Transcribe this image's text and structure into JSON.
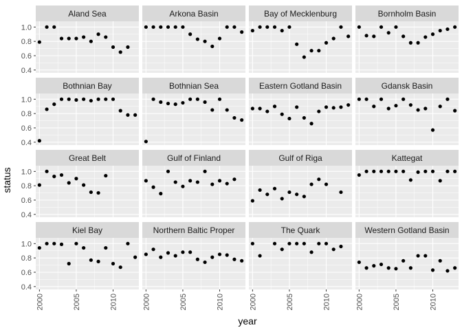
{
  "chart_data": {
    "type": "scatter",
    "facet_layout": "4x4 grid",
    "xlabel": "year",
    "ylabel": "status",
    "xlim": [
      1999.5,
      2013.5
    ],
    "ylim": [
      0.36,
      1.08
    ],
    "x_ticks": [
      2000,
      2005,
      2010
    ],
    "y_ticks": [
      0.4,
      0.6,
      0.8,
      1.0
    ],
    "y_tick_labels": [
      "0.4",
      "0.6",
      "0.8",
      "1.0"
    ],
    "grid": true,
    "colors": {
      "panel": "#ebebeb",
      "strip": "#d9d9d9",
      "grid_major": "#ffffff",
      "point": "#000000"
    },
    "facets": [
      {
        "name": "Aland Sea",
        "x": [
          2000,
          2001,
          2002,
          2003,
          2004,
          2005,
          2006,
          2007,
          2008,
          2009,
          2010,
          2011,
          2012
        ],
        "y": [
          0.79,
          1.0,
          1.0,
          0.84,
          0.84,
          0.84,
          0.86,
          0.8,
          0.9,
          0.86,
          0.72,
          0.65,
          0.72
        ]
      },
      {
        "name": "Arkona Basin",
        "x": [
          2000,
          2001,
          2002,
          2003,
          2004,
          2005,
          2006,
          2007,
          2008,
          2009,
          2010,
          2011,
          2012,
          2013
        ],
        "y": [
          1.0,
          1.0,
          1.0,
          1.0,
          1.0,
          1.0,
          0.9,
          0.83,
          0.8,
          0.73,
          0.84,
          1.0,
          1.0,
          0.93
        ]
      },
      {
        "name": "Bay of Mecklenburg",
        "x": [
          2000,
          2001,
          2002,
          2003,
          2004,
          2005,
          2006,
          2007,
          2008,
          2009,
          2010,
          2011,
          2012,
          2013
        ],
        "y": [
          0.95,
          1.0,
          1.0,
          1.0,
          0.95,
          1.0,
          0.76,
          0.58,
          0.67,
          0.67,
          0.78,
          0.84,
          1.0,
          0.87
        ]
      },
      {
        "name": "Bornholm Basin",
        "x": [
          2000,
          2001,
          2002,
          2003,
          2004,
          2005,
          2006,
          2007,
          2008,
          2009,
          2010,
          2011,
          2012,
          2013
        ],
        "y": [
          1.0,
          0.88,
          0.87,
          1.0,
          0.92,
          1.0,
          0.87,
          0.78,
          0.78,
          0.86,
          0.9,
          0.95,
          0.97,
          1.0
        ]
      },
      {
        "name": "Bothnian Bay",
        "x": [
          2000,
          2001,
          2002,
          2003,
          2004,
          2005,
          2006,
          2007,
          2008,
          2009,
          2010,
          2011,
          2012,
          2013
        ],
        "y": [
          0.42,
          0.86,
          0.93,
          1.0,
          1.0,
          0.99,
          1.0,
          0.98,
          1.0,
          1.0,
          1.0,
          0.84,
          0.78,
          0.78
        ]
      },
      {
        "name": "Bothnian Sea",
        "x": [
          2000,
          2001,
          2002,
          2003,
          2004,
          2005,
          2006,
          2007,
          2008,
          2009,
          2010,
          2011,
          2012,
          2013
        ],
        "y": [
          0.41,
          1.0,
          0.96,
          0.94,
          0.93,
          0.95,
          1.0,
          1.0,
          0.96,
          0.85,
          1.0,
          0.85,
          0.74,
          0.71
        ]
      },
      {
        "name": "Eastern Gotland Basin",
        "x": [
          2000,
          2001,
          2002,
          2003,
          2004,
          2005,
          2006,
          2007,
          2008,
          2009,
          2010,
          2011,
          2012,
          2013
        ],
        "y": [
          0.87,
          0.87,
          0.83,
          0.9,
          0.79,
          0.73,
          0.89,
          0.74,
          0.66,
          0.83,
          0.89,
          0.88,
          0.89,
          0.92
        ]
      },
      {
        "name": "Gdansk Basin",
        "x": [
          2000,
          2001,
          2002,
          2003,
          2004,
          2005,
          2006,
          2007,
          2008,
          2009,
          2010,
          2011,
          2012,
          2013
        ],
        "y": [
          1.0,
          1.0,
          0.9,
          1.0,
          0.87,
          0.91,
          1.0,
          0.92,
          0.85,
          0.87,
          0.57,
          0.9,
          1.0,
          0.84
        ]
      },
      {
        "name": "Great Belt",
        "x": [
          2000,
          2001,
          2002,
          2003,
          2004,
          2005,
          2006,
          2007,
          2008,
          2009
        ],
        "y": [
          0.81,
          1.0,
          0.93,
          0.95,
          0.84,
          0.9,
          0.81,
          0.71,
          0.7,
          0.94
        ]
      },
      {
        "name": "Gulf of Finland",
        "x": [
          2000,
          2001,
          2002,
          2003,
          2004,
          2005,
          2006,
          2007,
          2008,
          2009,
          2010,
          2011,
          2012
        ],
        "y": [
          0.87,
          0.78,
          0.69,
          1.0,
          0.85,
          0.79,
          0.87,
          0.85,
          1.0,
          0.82,
          0.87,
          0.83,
          0.89
        ]
      },
      {
        "name": "Gulf of Riga",
        "x": [
          2000,
          2001,
          2002,
          2003,
          2004,
          2005,
          2006,
          2007,
          2008,
          2009,
          2010,
          2012
        ],
        "y": [
          0.59,
          0.74,
          0.68,
          0.76,
          0.62,
          0.71,
          0.68,
          0.65,
          0.82,
          0.89,
          0.82,
          0.71
        ]
      },
      {
        "name": "Kattegat",
        "x": [
          2000,
          2001,
          2002,
          2003,
          2004,
          2005,
          2006,
          2007,
          2008,
          2009,
          2010,
          2011,
          2012,
          2013
        ],
        "y": [
          0.95,
          1.0,
          1.0,
          1.0,
          1.0,
          1.0,
          1.0,
          0.88,
          0.99,
          1.0,
          1.0,
          0.87,
          1.0,
          1.0
        ]
      },
      {
        "name": "Kiel Bay",
        "x": [
          2000,
          2001,
          2002,
          2003,
          2004,
          2005,
          2006,
          2007,
          2008,
          2009,
          2010,
          2011,
          2012,
          2013
        ],
        "y": [
          0.94,
          1.0,
          1.0,
          0.99,
          0.72,
          1.0,
          0.94,
          0.77,
          0.75,
          0.94,
          0.72,
          0.67,
          1.0,
          0.81
        ]
      },
      {
        "name": "Northern Baltic Proper",
        "x": [
          2000,
          2001,
          2002,
          2003,
          2004,
          2005,
          2006,
          2007,
          2008,
          2009,
          2010,
          2011,
          2012,
          2013
        ],
        "y": [
          0.85,
          0.92,
          0.81,
          0.87,
          0.83,
          0.88,
          0.88,
          0.78,
          0.74,
          0.81,
          0.85,
          0.84,
          0.78,
          0.76
        ]
      },
      {
        "name": "The Quark",
        "x": [
          2000,
          2001,
          2003,
          2004,
          2005,
          2006,
          2007,
          2008,
          2009,
          2010,
          2011,
          2012
        ],
        "y": [
          1.0,
          0.83,
          1.0,
          0.92,
          1.0,
          1.0,
          1.0,
          0.88,
          1.0,
          1.0,
          0.92,
          0.96
        ]
      },
      {
        "name": "Western Gotland Basin",
        "x": [
          2000,
          2001,
          2002,
          2003,
          2004,
          2005,
          2006,
          2007,
          2008,
          2009,
          2010,
          2011,
          2012,
          2013
        ],
        "y": [
          0.74,
          0.66,
          0.69,
          0.71,
          0.66,
          0.65,
          0.76,
          0.66,
          0.83,
          0.83,
          0.63,
          0.76,
          0.62,
          0.66
        ]
      }
    ]
  }
}
